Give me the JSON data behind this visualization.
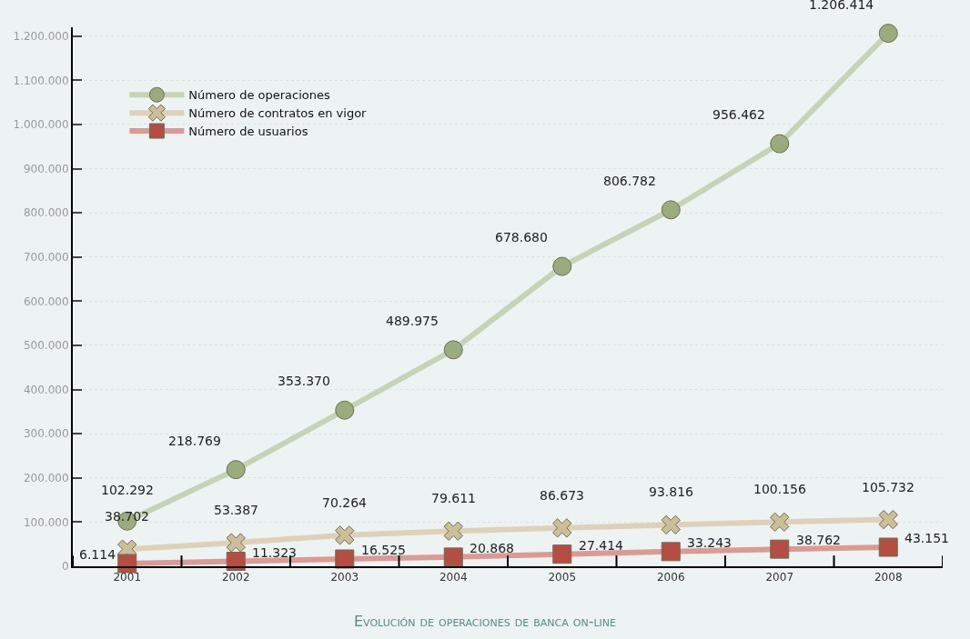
{
  "chart_data": {
    "type": "line",
    "title": "Evolución de operaciones de banca on-line",
    "categories": [
      "2001",
      "2002",
      "2003",
      "2004",
      "2005",
      "2006",
      "2007",
      "2008"
    ],
    "series": [
      {
        "name": "Número de operaciones",
        "color": "#c4d4b4",
        "marker": "circle",
        "values": [
          102292,
          218769,
          353370,
          489975,
          678680,
          806782,
          956462,
          1206414
        ],
        "value_labels": [
          "102.292",
          "218.769",
          "353.370",
          "489.975",
          "678.680",
          "806.782",
          "956.462",
          "1.206.414"
        ]
      },
      {
        "name": "Número de contratos en vigor",
        "color": "#ddd2b8",
        "marker": "cross",
        "values": [
          38702,
          53387,
          70264,
          79611,
          86673,
          93816,
          100156,
          105732
        ],
        "value_labels": [
          "38.702",
          "53.387",
          "70.264",
          "79.611",
          "86.673",
          "93.816",
          "100.156",
          "105.732"
        ]
      },
      {
        "name": "Número de usuarios",
        "color": "#dc9a94",
        "marker": "square",
        "values": [
          6114,
          11323,
          16525,
          20868,
          27414,
          33243,
          38762,
          43151
        ],
        "value_labels": [
          "6.114",
          "11.323",
          "16.525",
          "20.868",
          "27.414",
          "33.243",
          "38.762",
          "43.151"
        ]
      }
    ],
    "ylim": [
      0,
      1220000
    ],
    "yticks": [
      {
        "value": 0,
        "label": "0"
      },
      {
        "value": 100000,
        "label": "100.000"
      },
      {
        "value": 200000,
        "label": "200.000"
      },
      {
        "value": 300000,
        "label": "300.000"
      },
      {
        "value": 400000,
        "label": "400.000"
      },
      {
        "value": 500000,
        "label": "500.000"
      },
      {
        "value": 600000,
        "label": "600.000"
      },
      {
        "value": 700000,
        "label": "700.000"
      },
      {
        "value": 800000,
        "label": "800.000"
      },
      {
        "value": 900000,
        "label": "900.000"
      },
      {
        "value": 1000000,
        "label": "1.000.000"
      },
      {
        "value": 1100000,
        "label": "1.100.000"
      },
      {
        "value": 1200000,
        "label": "1.200.000"
      }
    ],
    "grid": "y",
    "legend": "top left",
    "line_style": "solid"
  }
}
